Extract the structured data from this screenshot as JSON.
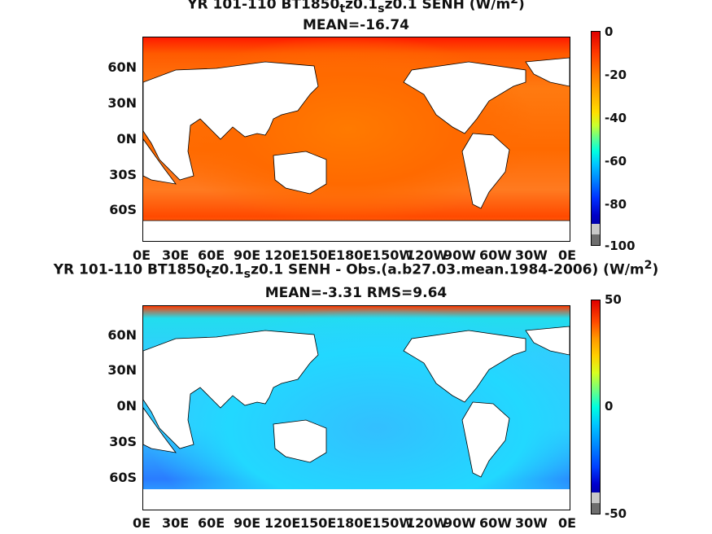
{
  "panels": [
    {
      "title_line1": "YR 101-110 BT1850",
      "title_sub1": "t",
      "title_mid": "z0.1",
      "title_sub2": "s",
      "title_end": "z0.1 SENH (W/m",
      "title_sup": "2",
      "title_close": ")",
      "title_line2": "MEAN=-16.74",
      "colorbar_labels": [
        "0",
        "-20",
        "-40",
        "-60",
        "-80",
        "-100"
      ]
    },
    {
      "title_line1": "YR 101-110 BT1850",
      "title_sub1": "t",
      "title_mid": "z0.1",
      "title_sub2": "s",
      "title_end": "z0.1 SENH - Obs.(a.b27.03.mean.1984-2006) (W/m",
      "title_sup": "2",
      "title_close": ")",
      "title_line2": "MEAN=-3.31 RMS=9.64",
      "colorbar_labels": [
        "50",
        "0",
        "-50"
      ]
    }
  ],
  "y_ticks": [
    "60N",
    "30N",
    "0N",
    "30S",
    "60S"
  ],
  "x_ticks": [
    "0E",
    "30E",
    "60E",
    "90E",
    "120E",
    "150E",
    "180E",
    "150W",
    "120W",
    "90W",
    "60W",
    "30W",
    "0E"
  ],
  "colors": {
    "land": "#ffffff",
    "missing": "#808080",
    "high": "#e00000",
    "low": "#0000a0"
  }
}
